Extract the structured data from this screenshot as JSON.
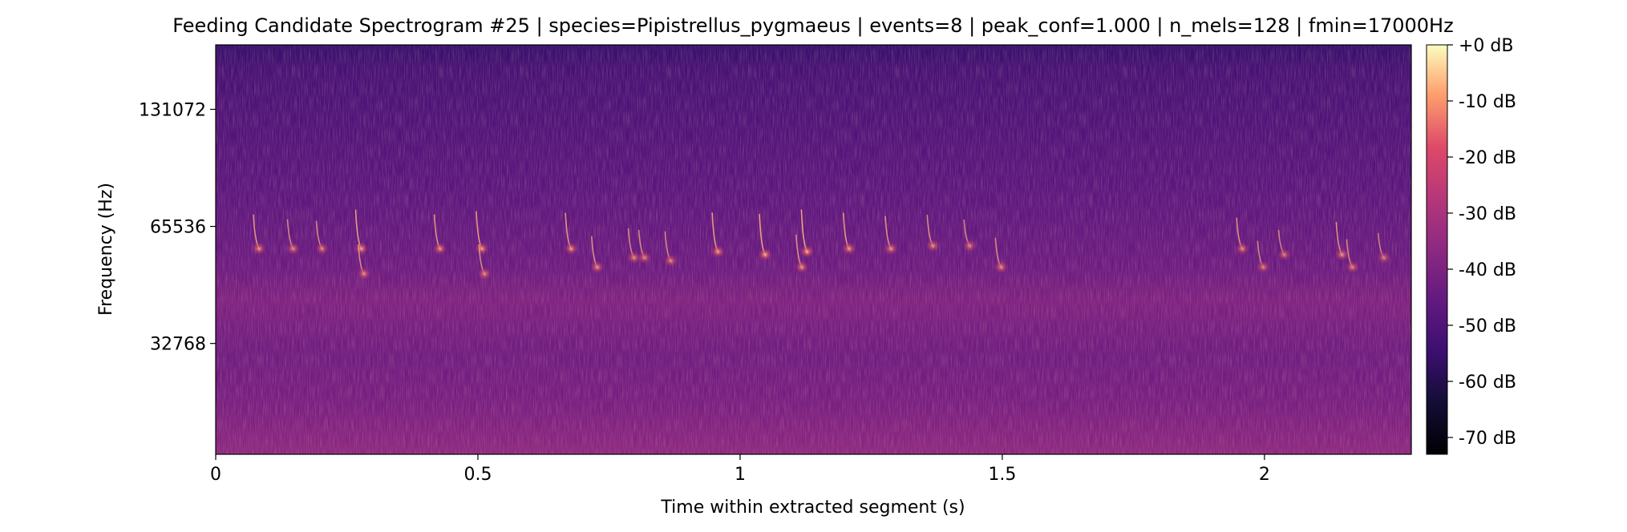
{
  "chart_data": {
    "type": "heatmap",
    "title": "Feeding Candidate Spectrogram #25 | species=Pipistrellus_pygmaeus | events=8 | peak_conf=1.000 | n_mels=128 | fmin=17000Hz",
    "xlabel": "Time within extracted segment (s)",
    "ylabel": "Frequency (Hz)",
    "xlim": [
      0,
      2.28
    ],
    "x_ticks": [
      0,
      0.5,
      1,
      1.5,
      2
    ],
    "x_tick_labels": [
      "0",
      "0.5",
      "1",
      "1.5",
      "2"
    ],
    "y_scale": "log2 (mel)",
    "ylim": [
      17000,
      192000
    ],
    "y_ticks": [
      32768,
      65536,
      131072
    ],
    "y_tick_labels": [
      "32768",
      "65536",
      "131072"
    ],
    "colormap": "magma",
    "colorbar": {
      "range": [
        -73,
        0
      ],
      "ticks": [
        0,
        -10,
        -20,
        -30,
        -40,
        -50,
        -60,
        -70
      ],
      "tick_labels": [
        "+0 dB",
        "-10 dB",
        "-20 dB",
        "-30 dB",
        "-40 dB",
        "-50 dB",
        "-60 dB",
        "-70 dB"
      ]
    },
    "call_events": [
      {
        "t": 0.075,
        "f": 58000,
        "peak_db": -18
      },
      {
        "t": 0.14,
        "f": 58000,
        "peak_db": -24
      },
      {
        "t": 0.195,
        "f": 58000,
        "peak_db": -26
      },
      {
        "t": 0.27,
        "f": 58000,
        "peak_db": -12
      },
      {
        "t": 0.275,
        "f": 50000,
        "peak_db": -24
      },
      {
        "t": 0.42,
        "f": 58000,
        "peak_db": -18
      },
      {
        "t": 0.5,
        "f": 58000,
        "peak_db": -14
      },
      {
        "t": 0.505,
        "f": 50000,
        "peak_db": -24
      },
      {
        "t": 0.67,
        "f": 58000,
        "peak_db": -16
      },
      {
        "t": 0.72,
        "f": 52000,
        "peak_db": -22
      },
      {
        "t": 0.79,
        "f": 55000,
        "peak_db": -24
      },
      {
        "t": 0.81,
        "f": 55000,
        "peak_db": -26
      },
      {
        "t": 0.86,
        "f": 54000,
        "peak_db": -24
      },
      {
        "t": 0.95,
        "f": 57000,
        "peak_db": -12
      },
      {
        "t": 1.04,
        "f": 56000,
        "peak_db": -10
      },
      {
        "t": 1.11,
        "f": 52000,
        "peak_db": -20
      },
      {
        "t": 1.12,
        "f": 57000,
        "peak_db": -8
      },
      {
        "t": 1.2,
        "f": 58000,
        "peak_db": -16
      },
      {
        "t": 1.28,
        "f": 58000,
        "peak_db": -20
      },
      {
        "t": 1.36,
        "f": 59000,
        "peak_db": -22
      },
      {
        "t": 1.43,
        "f": 59000,
        "peak_db": -28
      },
      {
        "t": 1.49,
        "f": 52000,
        "peak_db": -24
      },
      {
        "t": 1.95,
        "f": 58000,
        "peak_db": -22
      },
      {
        "t": 1.99,
        "f": 52000,
        "peak_db": -28
      },
      {
        "t": 2.03,
        "f": 56000,
        "peak_db": -30
      },
      {
        "t": 2.14,
        "f": 56000,
        "peak_db": -20
      },
      {
        "t": 2.16,
        "f": 52000,
        "peak_db": -26
      },
      {
        "t": 2.22,
        "f": 55000,
        "peak_db": -30
      }
    ]
  }
}
